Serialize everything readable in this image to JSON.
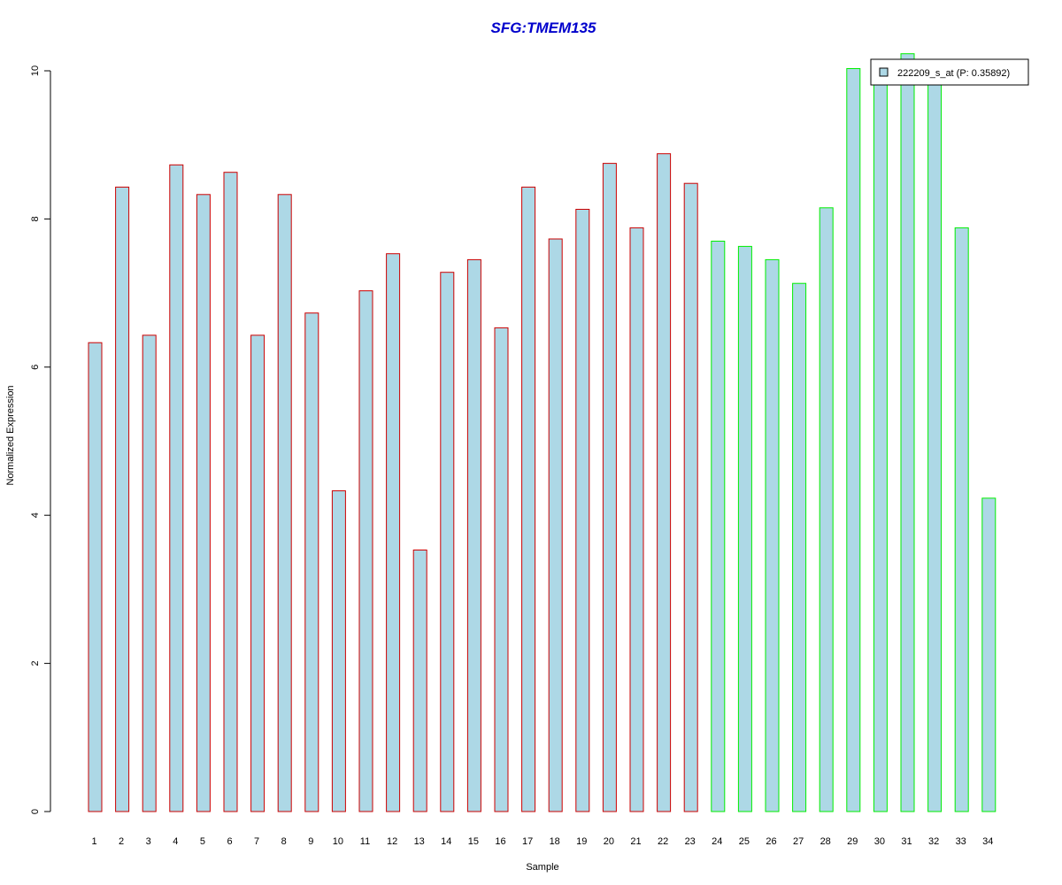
{
  "chart_data": {
    "type": "bar",
    "title": "SFG:TMEM135",
    "xlabel": "Sample",
    "ylabel": "Normalized Expression",
    "ylim": [
      0,
      10
    ],
    "yticks": [
      0,
      2,
      4,
      6,
      8,
      10
    ],
    "categories": [
      "1",
      "2",
      "3",
      "4",
      "5",
      "6",
      "7",
      "8",
      "9",
      "10",
      "11",
      "12",
      "13",
      "14",
      "15",
      "16",
      "17",
      "18",
      "19",
      "20",
      "21",
      "22",
      "23",
      "24",
      "25",
      "26",
      "27",
      "28",
      "29",
      "30",
      "31",
      "32",
      "33",
      "34"
    ],
    "series": [
      {
        "name": "222209_s_at (P: 0.35892)",
        "values": [
          6.33,
          8.43,
          6.43,
          8.73,
          8.33,
          8.63,
          6.43,
          8.33,
          6.73,
          4.33,
          7.03,
          7.53,
          3.53,
          7.28,
          7.45,
          6.53,
          8.43,
          7.73,
          8.13,
          8.75,
          7.88,
          8.88,
          8.48,
          7.7,
          7.63,
          7.45,
          7.13,
          8.15,
          10.03,
          9.95,
          10.23,
          9.95,
          7.88,
          4.23
        ]
      }
    ],
    "group_border_colors": [
      "#cc0000",
      "#cc0000",
      "#cc0000",
      "#cc0000",
      "#cc0000",
      "#cc0000",
      "#cc0000",
      "#cc0000",
      "#cc0000",
      "#cc0000",
      "#cc0000",
      "#cc0000",
      "#cc0000",
      "#cc0000",
      "#cc0000",
      "#cc0000",
      "#cc0000",
      "#cc0000",
      "#cc0000",
      "#cc0000",
      "#cc0000",
      "#cc0000",
      "#cc0000",
      "#00ee00",
      "#00ee00",
      "#00ee00",
      "#00ee00",
      "#00ee00",
      "#00ee00",
      "#00ee00",
      "#00ee00",
      "#00ee00",
      "#00ee00",
      "#00ee00"
    ],
    "bar_fill": "#add8e6",
    "title_color": "#0000cc",
    "grid": false,
    "legend_position": "top-right"
  }
}
